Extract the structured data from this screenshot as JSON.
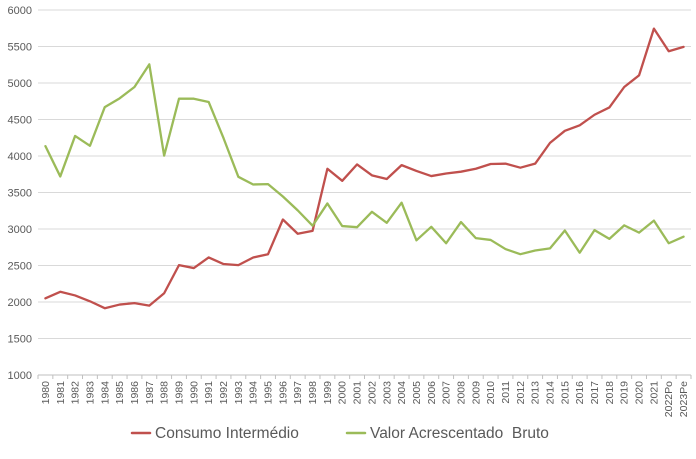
{
  "chart_data": {
    "type": "line",
    "title": "",
    "xlabel": "",
    "ylabel": "",
    "ylim": [
      1000,
      6000
    ],
    "yticks": [
      1000,
      1500,
      2000,
      2500,
      3000,
      3500,
      4000,
      4500,
      5000,
      5500,
      6000
    ],
    "grid": true,
    "legend_position": "bottom",
    "categories": [
      "1980",
      "1981",
      "1982",
      "1983",
      "1984",
      "1985",
      "1986",
      "1987",
      "1988",
      "1989",
      "1990",
      "1991",
      "1992",
      "1993",
      "1994",
      "1995",
      "1996",
      "1997",
      "1998",
      "1999",
      "2000",
      "2001",
      "2002",
      "2003",
      "2004",
      "2005",
      "2006",
      "2007",
      "2008",
      "2009",
      "2010",
      "2011",
      "2012",
      "2013",
      "2014",
      "2015",
      "2016",
      "2017",
      "2018",
      "2019",
      "2020",
      "2021",
      "2022Po",
      "2023Pe"
    ],
    "series": [
      {
        "name": "Consumo Intermédio",
        "color": "#c0504d",
        "values": [
          2050,
          2140,
          2090,
          2010,
          1915,
          1965,
          1985,
          1950,
          2120,
          2505,
          2465,
          2610,
          2520,
          2505,
          2610,
          2655,
          3130,
          2935,
          2975,
          3825,
          3660,
          3885,
          3735,
          3685,
          3875,
          3795,
          3725,
          3760,
          3785,
          3825,
          3890,
          3895,
          3840,
          3895,
          4180,
          4345,
          4420,
          4565,
          4665,
          4945,
          5105,
          5745,
          5435,
          5495
        ]
      },
      {
        "name": "Valor Acrescentado  Bruto",
        "color": "#9bbb59",
        "values": [
          4135,
          3720,
          4275,
          4140,
          4670,
          4790,
          4945,
          5255,
          4005,
          4785,
          4785,
          4740,
          4245,
          3715,
          3610,
          3615,
          3445,
          3255,
          3045,
          3350,
          3040,
          3025,
          3235,
          3085,
          3360,
          2845,
          3030,
          2805,
          3095,
          2875,
          2850,
          2725,
          2655,
          2705,
          2735,
          2980,
          2675,
          2985,
          2865,
          3050,
          2950,
          3115,
          2805,
          2895
        ]
      }
    ]
  }
}
